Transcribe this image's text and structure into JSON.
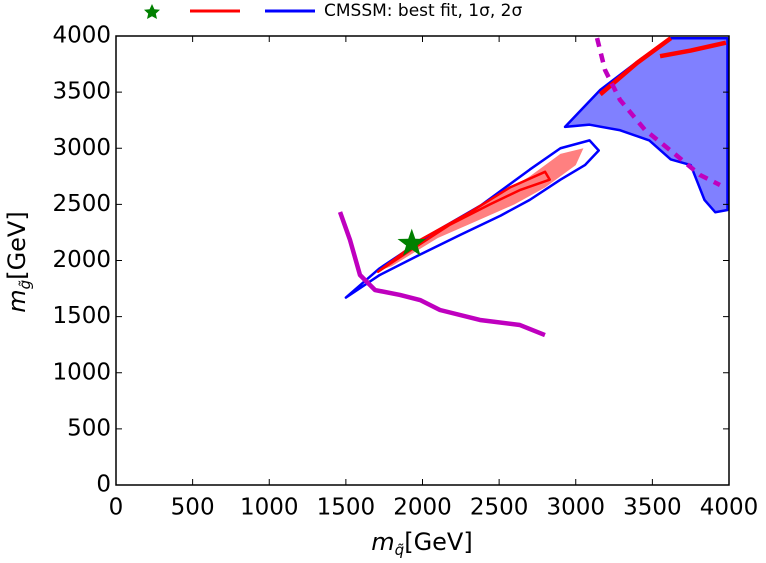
{
  "chart_data": {
    "type": "contour",
    "legend_label": "CMSSM: best fit, 1σ, 2σ",
    "xlabel": {
      "symbol": "m",
      "subscript": "q̃",
      "unit": "[GeV]"
    },
    "ylabel": {
      "symbol": "m",
      "subscript": "g̃",
      "unit": "[GeV]"
    },
    "xlim": [
      0,
      4000
    ],
    "ylim": [
      0,
      4000
    ],
    "xticks": [
      0,
      500,
      1000,
      1500,
      2000,
      2500,
      3000,
      3500,
      4000
    ],
    "yticks": [
      0,
      500,
      1000,
      1500,
      2000,
      2500,
      3000,
      3500,
      4000
    ],
    "series": [
      {
        "kind": "area",
        "color": "#8080ff",
        "edge": "#0000ff",
        "x": [
          2930,
          3160,
          3420,
          3620,
          3990,
          3990,
          3910,
          3840,
          3750,
          3620,
          3480,
          3290,
          3090
        ],
        "values": [
          3190,
          3520,
          3790,
          3980,
          3980,
          2450,
          2430,
          2540,
          2850,
          2900,
          3070,
          3160,
          3210
        ]
      },
      {
        "kind": "area",
        "color": "#ff8080",
        "edge": "none",
        "x": [
          1700,
          2050,
          2400,
          2700,
          2900,
          3050,
          3000,
          2800,
          2600,
          2350,
          2100,
          1800
        ],
        "values": [
          1900,
          2200,
          2500,
          2750,
          2950,
          3000,
          2850,
          2650,
          2500,
          2350,
          2200,
          1950
        ]
      },
      {
        "kind": "area",
        "color": "none",
        "edge": "#0000ff",
        "x": [
          1500,
          1720,
          2050,
          2380,
          2700,
          2900,
          3090,
          3150,
          3060,
          2900,
          2700,
          2510,
          2250,
          1980,
          1720
        ],
        "values": [
          1670,
          1930,
          2230,
          2490,
          2810,
          3000,
          3070,
          2980,
          2850,
          2720,
          2540,
          2400,
          2230,
          2050,
          1870
        ]
      },
      {
        "kind": "area",
        "color": "none",
        "edge": "#ff0000",
        "x": [
          1710,
          1980,
          2310,
          2570,
          2800,
          2830,
          2640,
          2440,
          2180,
          1920
        ],
        "values": [
          1900,
          2180,
          2430,
          2650,
          2790,
          2720,
          2630,
          2500,
          2320,
          2090
        ]
      },
      {
        "kind": "line",
        "color": "#ff0000",
        "dash": false,
        "x": [
          3160,
          3400,
          3620,
          null,
          3550,
          3750,
          3980
        ],
        "values": [
          3480,
          3760,
          3980,
          null,
          3820,
          3870,
          3940
        ]
      },
      {
        "kind": "line",
        "color": "#bf00bf",
        "dash": false,
        "x": [
          1462,
          1527,
          1592,
          1690,
          1853,
          1984,
          2114,
          2375,
          2636,
          2799
        ],
        "values": [
          2432,
          2183,
          1871,
          1737,
          1693,
          1648,
          1559,
          1470,
          1425,
          1336
        ]
      },
      {
        "kind": "line",
        "color": "#bf00bf",
        "dash": true,
        "x": [
          3139,
          3191,
          3289,
          3452,
          3615,
          3811,
          3941
        ],
        "values": [
          3982,
          3697,
          3430,
          3163,
          2984,
          2762,
          2673
        ]
      },
      {
        "kind": "marker",
        "color": "#008000",
        "x": [
          1930
        ],
        "values": [
          2150
        ]
      }
    ]
  }
}
